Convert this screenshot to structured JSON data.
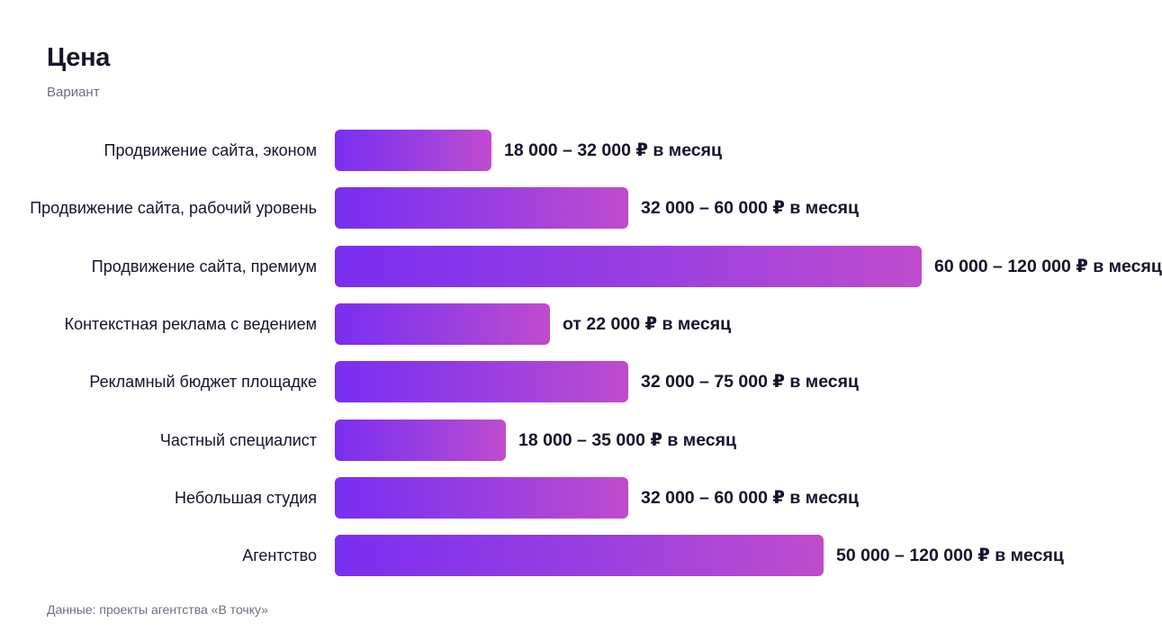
{
  "chart_data": {
    "type": "bar",
    "orientation": "horizontal",
    "title": "Цена",
    "subtitle": "Вариант",
    "source": "Данные: проекты агентства «В точку»",
    "grid": false,
    "legend": "none",
    "xlim": [
      0,
      120000
    ],
    "colors": {
      "bar_start": "#7a2ef0",
      "bar_mid": "#9b40e0",
      "bar_end": "#c04bcc",
      "text": "#14142b",
      "muted": "#6e6e80"
    },
    "categories": [
      "Продвижение сайта, эконом",
      "Продвижение сайта, рабочий уровень",
      "Продвижение сайта, премиум",
      "Контекстная реклама с ведением",
      "Рекламный бюджет площадке",
      "Частный специалист",
      "Небольшая студия",
      "Агентство"
    ],
    "series": [
      {
        "values": [
          32000,
          60000,
          120000,
          44000,
          60000,
          35000,
          60000,
          100000
        ],
        "value_labels": [
          "18 000 – 32 000 ₽ в месяц",
          "32 000 – 60 000 ₽ в месяц",
          "60 000 – 120 000 ₽ в месяц",
          "от 22 000 ₽ в месяц",
          "32 000 – 75 000 ₽ в месяц",
          "18 000 – 35 000 ₽ в месяц",
          "32 000 – 60 000 ₽ в месяц",
          "50 000 – 120 000 ₽ в месяц"
        ]
      }
    ]
  }
}
